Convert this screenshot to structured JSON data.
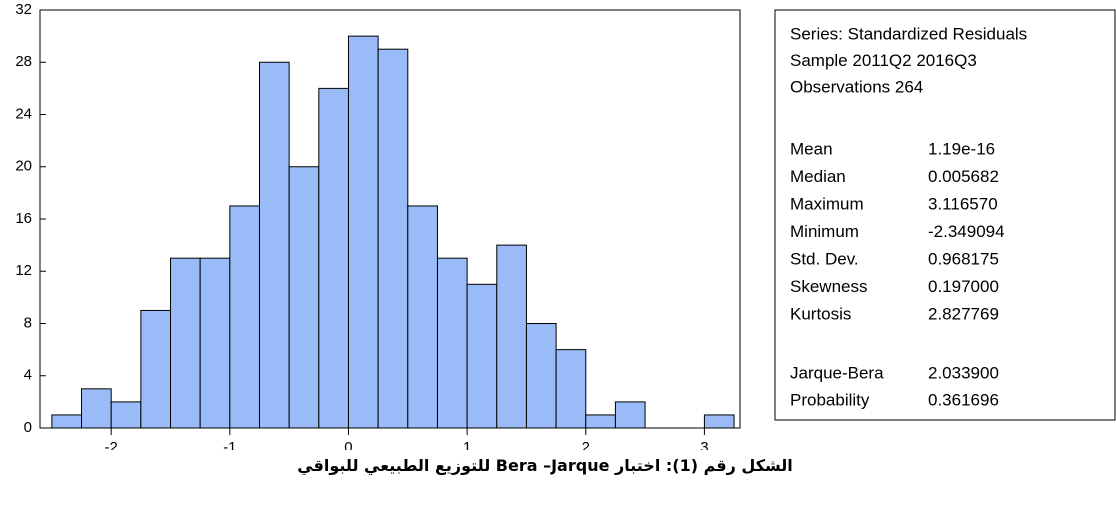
{
  "chart_data": {
    "type": "histogram",
    "bins": [
      -2.5,
      -2.25,
      -2,
      -1.75,
      -1.5,
      -1.25,
      -1,
      -0.75,
      -0.5,
      -0.25,
      0,
      0.25,
      0.5,
      0.75,
      1,
      1.25,
      1.5,
      1.75,
      2,
      2.25,
      2.5,
      2.75,
      3,
      3.25
    ],
    "values": [
      1,
      3,
      2,
      9,
      13,
      13,
      17,
      28,
      20,
      26,
      30,
      29,
      17,
      13,
      11,
      14,
      8,
      6,
      1,
      2,
      0,
      0,
      1
    ],
    "color": "#99bbf7",
    "xlim": [
      -2.6,
      3.3
    ],
    "xticks": [
      -2,
      -1,
      0,
      1,
      2,
      3
    ],
    "ylim": [
      0,
      32
    ],
    "yticks": [
      0,
      4,
      8,
      12,
      16,
      20,
      24,
      28,
      32
    ],
    "grid": false,
    "stats_header": [
      "Series: Standardized Residuals",
      "Sample 2011Q2 2016Q3",
      "Observations 264"
    ],
    "stats": [
      {
        "label": "Mean",
        "value": "1.19e-16"
      },
      {
        "label": "Median",
        "value": "0.005682"
      },
      {
        "label": "Maximum",
        "value": "3.116570"
      },
      {
        "label": "Minimum",
        "value": "-2.349094"
      },
      {
        "label": "Std. Dev.",
        "value": "0.968175"
      },
      {
        "label": "Skewness",
        "value": "0.197000"
      },
      {
        "label": "Kurtosis",
        "value": "2.827769"
      },
      {
        "label": "Jarque-Bera",
        "value": "2.033900"
      },
      {
        "label": "Probability",
        "value": "0.361696"
      }
    ]
  },
  "caption": "الشكل رقم (1): اختبار Bera –Jarque للتوزيع الطبيعي للبواقي"
}
